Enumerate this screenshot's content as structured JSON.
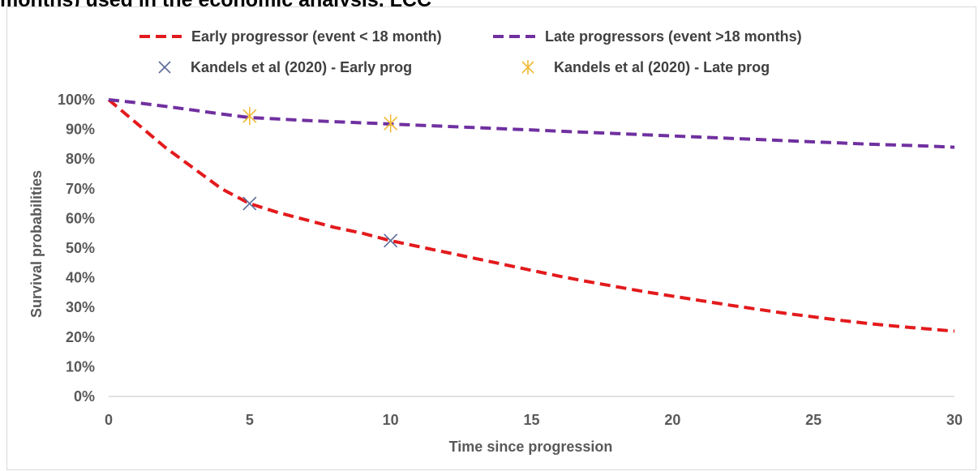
{
  "page": {
    "title": "months) used in the economic analysis, LCC"
  },
  "chart_data": {
    "type": "line",
    "title": "",
    "xlabel": "Time since progression",
    "ylabel": "Survival probabilities",
    "xlim": [
      0,
      30
    ],
    "ylim": [
      0,
      100
    ],
    "x_ticks": [
      "0",
      "5",
      "10",
      "15",
      "20",
      "25",
      "30"
    ],
    "y_ticks": [
      "0%",
      "10%",
      "20%",
      "30%",
      "40%",
      "50%",
      "60%",
      "70%",
      "80%",
      "90%",
      "100%"
    ],
    "grid": false,
    "legend_position": "top",
    "series": [
      {
        "name": "Early progressor (event < 18 month)",
        "style": "dashed-line",
        "color": "#e31a1c",
        "x": [
          0,
          1,
          2,
          3,
          4,
          5,
          6,
          7,
          8,
          9,
          10,
          11,
          12,
          13,
          14,
          15,
          16,
          17,
          18,
          19,
          20,
          21,
          22,
          23,
          24,
          25,
          26,
          27,
          28,
          29,
          30
        ],
        "y": [
          100,
          92,
          84,
          77,
          70,
          65,
          62,
          59.5,
          57,
          55,
          52.5,
          50.5,
          48.5,
          46.5,
          44.5,
          42.5,
          40.5,
          38.7,
          37,
          35.3,
          33.8,
          32.3,
          30.8,
          29.4,
          28,
          26.8,
          25.6,
          24.5,
          23.6,
          22.8,
          22
        ]
      },
      {
        "name": "Late  progressors (event >18 months)",
        "style": "dashed-line",
        "color": "#7030a0",
        "x": [
          0,
          1,
          2,
          3,
          4,
          5,
          6,
          7,
          8,
          9,
          10,
          11,
          12,
          13,
          14,
          15,
          16,
          17,
          18,
          19,
          20,
          21,
          22,
          23,
          24,
          25,
          26,
          27,
          28,
          29,
          30
        ],
        "y": [
          100,
          99,
          97.8,
          96.5,
          95.2,
          94,
          93.5,
          93,
          92.6,
          92.2,
          91.8,
          91.4,
          91,
          90.6,
          90.2,
          89.8,
          89.4,
          89,
          88.6,
          88.2,
          87.8,
          87.4,
          87,
          86.6,
          86.2,
          85.8,
          85.4,
          85,
          84.7,
          84.4,
          84
        ]
      },
      {
        "name": "Kandels et al (2020) - Early prog",
        "style": "x-marker",
        "color": "#5b6a9a",
        "x": [
          5,
          10
        ],
        "y": [
          65,
          52.5
        ]
      },
      {
        "name": "Kandels et al (2020) - Late prog",
        "style": "star-marker",
        "color": "#f2b936",
        "x": [
          5,
          10
        ],
        "y": [
          94.5,
          92
        ]
      }
    ]
  }
}
